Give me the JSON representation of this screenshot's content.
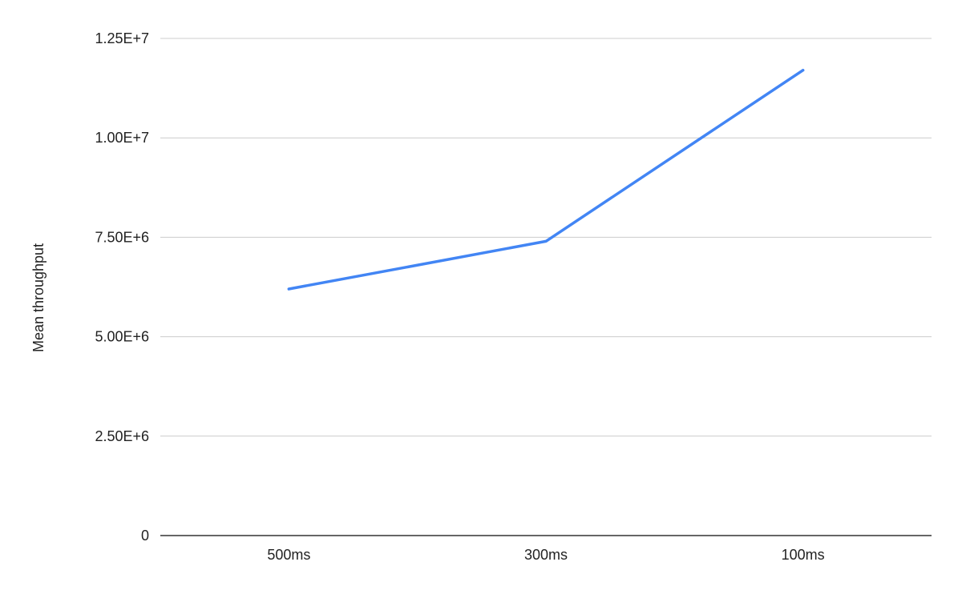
{
  "chart_data": {
    "type": "line",
    "title": "",
    "xlabel": "",
    "ylabel": "Mean throughput",
    "categories": [
      "500ms",
      "300ms",
      "100ms"
    ],
    "series": [
      {
        "color": "#4285f4",
        "values": [
          6200000,
          7400000,
          11700000
        ]
      }
    ],
    "ylim": [
      0,
      12500000
    ],
    "yticks": [
      0,
      2500000,
      5000000,
      7500000,
      10000000,
      12500000
    ],
    "ytick_labels": [
      "0",
      "2.50E+6",
      "5.00E+6",
      "7.50E+6",
      "1.00E+7",
      "1.25E+7"
    ],
    "grid": true,
    "legend": "none"
  },
  "colors": {
    "gridline": "#cccccc",
    "baseline": "#333333",
    "text": "#222222"
  }
}
